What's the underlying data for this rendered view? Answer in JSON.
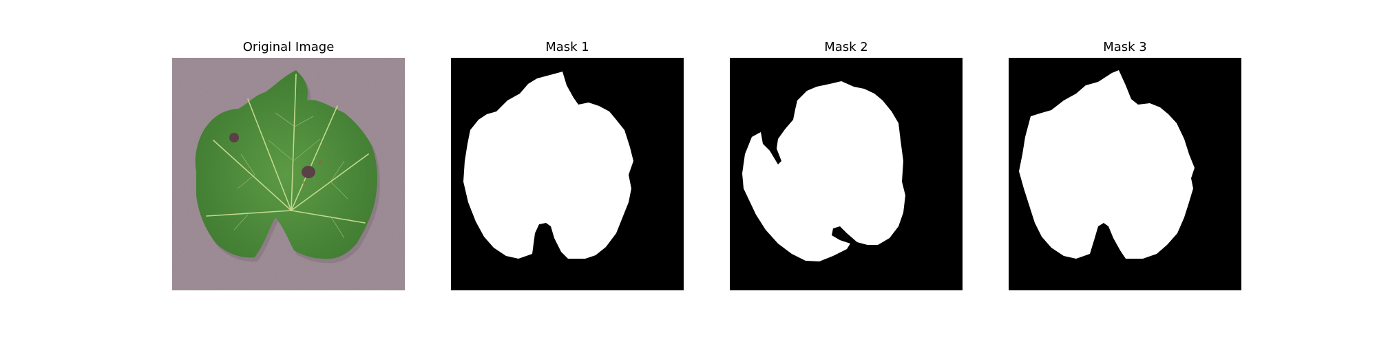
{
  "panels": [
    {
      "title": "Original Image",
      "kind": "photo",
      "subject": "green grape leaf on grey-mauve textured surface"
    },
    {
      "title": "Mask 1",
      "kind": "binary-mask"
    },
    {
      "title": "Mask 2",
      "kind": "binary-mask"
    },
    {
      "title": "Mask 3",
      "kind": "binary-mask"
    }
  ],
  "colors": {
    "page_background": "#ffffff",
    "photo_background": "#a08f98",
    "leaf_fill": "#4f8d3a",
    "leaf_vein": "#c2d98c",
    "hole": "#5b4045",
    "mask_background": "#000000",
    "mask_foreground": "#ffffff",
    "title_text": "#000000"
  }
}
